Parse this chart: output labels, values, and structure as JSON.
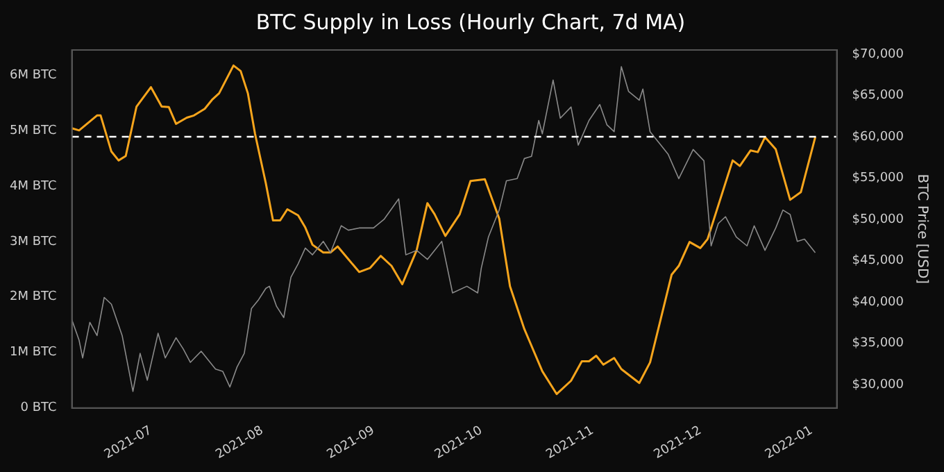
{
  "chart_data": {
    "type": "line",
    "title": "BTC Supply in Loss (Hourly Chart, 7d MA)",
    "y2label": "BTC Price [USD]",
    "xlim": [
      "2021-06-09",
      "2022-01-08"
    ],
    "xticks": [
      {
        "value": "2021-07",
        "label": "2021-07"
      },
      {
        "value": "2021-08",
        "label": "2021-08"
      },
      {
        "value": "2021-09",
        "label": "2021-09"
      },
      {
        "value": "2021-10",
        "label": "2021-10"
      },
      {
        "value": "2021-11",
        "label": "2021-11"
      },
      {
        "value": "2021-12",
        "label": "2021-12"
      },
      {
        "value": "2022-01",
        "label": "2022-01"
      }
    ],
    "ylim": [
      0,
      6450000
    ],
    "yticks": [
      {
        "value": 0,
        "label": "0 BTC"
      },
      {
        "value": 1000000,
        "label": "1M BTC"
      },
      {
        "value": 2000000,
        "label": "2M BTC"
      },
      {
        "value": 3000000,
        "label": "3M BTC"
      },
      {
        "value": 4000000,
        "label": "4M BTC"
      },
      {
        "value": 5000000,
        "label": "5M BTC"
      },
      {
        "value": 6000000,
        "label": "6M BTC"
      }
    ],
    "y2lim": [
      27200,
      70500
    ],
    "y2ticks": [
      {
        "value": 30000,
        "label": "$30,000"
      },
      {
        "value": 35000,
        "label": "$35,000"
      },
      {
        "value": 40000,
        "label": "$40,000"
      },
      {
        "value": 45000,
        "label": "$45,000"
      },
      {
        "value": 50000,
        "label": "$50,000"
      },
      {
        "value": 55000,
        "label": "$55,000"
      },
      {
        "value": 60000,
        "label": "$60,000"
      },
      {
        "value": 65000,
        "label": "$65,000"
      },
      {
        "value": 70000,
        "label": "$70,000"
      }
    ],
    "grid": false,
    "legend": false,
    "marker": "none",
    "line_style": "solid",
    "ref_lines": [
      {
        "axis": "y2",
        "value": 60000,
        "color": "#ffffff",
        "line_style": "dashed"
      }
    ],
    "series": [
      {
        "axis": "y2",
        "color": "#8a8a8a",
        "x": [
          "2021-06-09",
          "2021-06-11",
          "2021-06-12",
          "2021-06-14",
          "2021-06-16",
          "2021-06-18",
          "2021-06-20",
          "2021-06-23",
          "2021-06-26",
          "2021-06-28",
          "2021-06-30",
          "2021-07-03",
          "2021-07-05",
          "2021-07-08",
          "2021-07-10",
          "2021-07-12",
          "2021-07-15",
          "2021-07-19",
          "2021-07-21",
          "2021-07-23",
          "2021-07-25",
          "2021-07-27",
          "2021-07-29",
          "2021-07-31",
          "2021-08-02",
          "2021-08-03",
          "2021-08-05",
          "2021-08-07",
          "2021-08-09",
          "2021-08-11",
          "2021-08-13",
          "2021-08-15",
          "2021-08-18",
          "2021-08-20",
          "2021-08-23",
          "2021-08-25",
          "2021-08-28",
          "2021-09-01",
          "2021-09-04",
          "2021-09-08",
          "2021-09-10",
          "2021-09-13",
          "2021-09-16",
          "2021-09-20",
          "2021-09-23",
          "2021-09-27",
          "2021-09-30",
          "2021-10-01",
          "2021-10-03",
          "2021-10-06",
          "2021-10-08",
          "2021-10-11",
          "2021-10-13",
          "2021-10-15",
          "2021-10-17",
          "2021-10-18",
          "2021-10-21",
          "2021-10-23",
          "2021-10-26",
          "2021-10-28",
          "2021-10-31",
          "2021-11-03",
          "2021-11-05",
          "2021-11-07",
          "2021-11-09",
          "2021-11-11",
          "2021-11-14",
          "2021-11-15",
          "2021-11-17",
          "2021-11-20",
          "2021-11-22",
          "2021-11-25",
          "2021-11-29",
          "2021-12-02",
          "2021-12-04",
          "2021-12-06",
          "2021-12-08",
          "2021-12-11",
          "2021-12-14",
          "2021-12-16",
          "2021-12-19",
          "2021-12-22",
          "2021-12-24",
          "2021-12-26",
          "2021-12-28",
          "2021-12-30",
          "2022-01-02"
        ],
        "values": [
          37850,
          35400,
          33250,
          37550,
          35950,
          40570,
          39750,
          35950,
          29200,
          33800,
          30550,
          36230,
          33250,
          35690,
          34340,
          32710,
          34060,
          31900,
          31630,
          29730,
          32160,
          33790,
          39220,
          40300,
          41660,
          41920,
          39480,
          38130,
          43010,
          44630,
          46540,
          45720,
          47350,
          45980,
          49240,
          48700,
          48970,
          48970,
          50050,
          52490,
          45720,
          46260,
          45170,
          47350,
          41110,
          41920,
          41110,
          44100,
          47890,
          51140,
          54670,
          54940,
          57370,
          57640,
          61980,
          60360,
          66860,
          62250,
          63600,
          58990,
          61980,
          63910,
          61440,
          60620,
          68490,
          65500,
          64430,
          65770,
          60620,
          58990,
          57910,
          54940,
          58460,
          57100,
          46800,
          49510,
          50330,
          47890,
          46800,
          49240,
          46260,
          48970,
          51140,
          50600,
          47350,
          47620,
          45990
        ]
      },
      {
        "color": "#f7a51c",
        "x": [
          "2021-06-09",
          "2021-06-11",
          "2021-06-16",
          "2021-06-17",
          "2021-06-20",
          "2021-06-22",
          "2021-06-24",
          "2021-06-27",
          "2021-07-01",
          "2021-07-04",
          "2021-07-06",
          "2021-07-08",
          "2021-07-11",
          "2021-07-13",
          "2021-07-16",
          "2021-07-18",
          "2021-07-20",
          "2021-07-24",
          "2021-07-26",
          "2021-07-28",
          "2021-07-30",
          "2021-08-02",
          "2021-08-04",
          "2021-08-06",
          "2021-08-08",
          "2021-08-11",
          "2021-08-13",
          "2021-08-15",
          "2021-08-18",
          "2021-08-20",
          "2021-08-22",
          "2021-08-25",
          "2021-08-28",
          "2021-08-31",
          "2021-09-03",
          "2021-09-06",
          "2021-09-09",
          "2021-09-13",
          "2021-09-16",
          "2021-09-18",
          "2021-09-21",
          "2021-09-25",
          "2021-09-28",
          "2021-10-02",
          "2021-10-06",
          "2021-10-09",
          "2021-10-13",
          "2021-10-18",
          "2021-10-22",
          "2021-10-26",
          "2021-10-29",
          "2021-10-31",
          "2021-11-02",
          "2021-11-04",
          "2021-11-07",
          "2021-11-09",
          "2021-11-14",
          "2021-11-17",
          "2021-11-23",
          "2021-11-25",
          "2021-11-28",
          "2021-12-01",
          "2021-12-03",
          "2021-12-10",
          "2021-12-12",
          "2021-12-15",
          "2021-12-17",
          "2021-12-19",
          "2021-12-22",
          "2021-12-26",
          "2021-12-29",
          "2022-01-02"
        ],
        "values": [
          5040000,
          5000000,
          5270000,
          5270000,
          4620000,
          4460000,
          4540000,
          5430000,
          5780000,
          5430000,
          5420000,
          5120000,
          5230000,
          5270000,
          5390000,
          5550000,
          5670000,
          6170000,
          6070000,
          5670000,
          4940000,
          4050000,
          3380000,
          3380000,
          3580000,
          3470000,
          3250000,
          2940000,
          2800000,
          2800000,
          2910000,
          2680000,
          2450000,
          2520000,
          2740000,
          2560000,
          2230000,
          2840000,
          3690000,
          3490000,
          3100000,
          3490000,
          4090000,
          4120000,
          3410000,
          2190000,
          1420000,
          660000,
          250000,
          490000,
          840000,
          840000,
          940000,
          780000,
          900000,
          700000,
          450000,
          820000,
          2400000,
          2560000,
          2990000,
          2880000,
          3040000,
          4460000,
          4360000,
          4640000,
          4610000,
          4880000,
          4660000,
          3750000,
          3890000,
          4880000
        ]
      }
    ]
  }
}
